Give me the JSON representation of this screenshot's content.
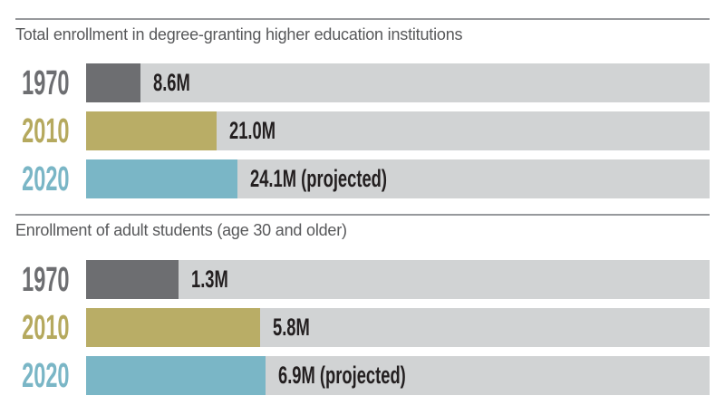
{
  "colors": {
    "rule": "#97999c",
    "title_text": "#57585a",
    "value_text": "#231f20",
    "track": "#d1d3d4",
    "gray_bar": "#6d6e71",
    "olive_bar": "#b9ad66",
    "blue_bar": "#7ab6c6"
  },
  "chart_data": [
    {
      "type": "bar",
      "orientation": "horizontal",
      "title": "Total enrollment in degree-granting higher education institutions",
      "categories": [
        "1970",
        "2010",
        "2020"
      ],
      "values": [
        8.6,
        21.0,
        24.1
      ],
      "value_labels": [
        "8.6M",
        "21.0M",
        "24.1M (projected)"
      ],
      "unit": "millions of students",
      "annotations": [
        "2020 value is projected"
      ],
      "legend": false,
      "grid": false
    },
    {
      "type": "bar",
      "orientation": "horizontal",
      "title": "Enrollment of adult students (age 30 and older)",
      "categories": [
        "1970",
        "2010",
        "2020"
      ],
      "values": [
        1.3,
        5.8,
        6.9
      ],
      "value_labels": [
        "1.3M",
        "5.8M",
        "6.9M (projected)"
      ],
      "unit": "millions of students",
      "annotations": [
        "2020 value is projected"
      ],
      "legend": false,
      "grid": false
    }
  ],
  "sections": [
    {
      "title": "Total enrollment in degree-granting higher education institutions",
      "rows": [
        {
          "year": "1970",
          "value": 8.6,
          "value_label": "8.6M",
          "color": "#6d6e71",
          "year_color": "#6d6e71",
          "bar_width": "8.73%"
        },
        {
          "year": "2010",
          "value": 21.0,
          "value_label": "21.0M",
          "color": "#b9ad66",
          "year_color": "#b5a95e",
          "bar_width": "20.96%"
        },
        {
          "year": "2020",
          "value": 24.1,
          "value_label": "24.1M (projected)",
          "color": "#7ab6c6",
          "year_color": "#7ab6c6",
          "bar_width": "24.31%"
        }
      ]
    },
    {
      "title": "Enrollment of adult students (age 30 and older)",
      "rows": [
        {
          "year": "1970",
          "value": 1.3,
          "value_label": "1.3M",
          "color": "#6d6e71",
          "year_color": "#6d6e71",
          "bar_width": "14.85%"
        },
        {
          "year": "2010",
          "value": 5.8,
          "value_label": "5.8M",
          "color": "#b9ad66",
          "year_color": "#b5a95e",
          "bar_width": "27.95%"
        },
        {
          "year": "2020",
          "value": 6.9,
          "value_label": "6.9M (projected)",
          "color": "#7ab6c6",
          "year_color": "#7ab6c6",
          "bar_width": "28.82%"
        }
      ]
    }
  ]
}
